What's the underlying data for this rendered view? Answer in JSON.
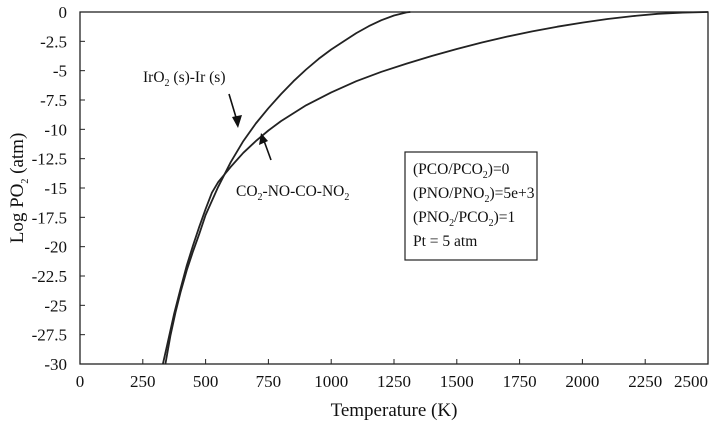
{
  "chart_data": {
    "type": "line",
    "title": "",
    "xlabel": "Temperature (K)",
    "ylabel": {
      "main": "Log PO",
      "sub": "2",
      "unit": " (atm)"
    },
    "xlim": [
      0,
      2500
    ],
    "ylim": [
      -30,
      0
    ],
    "x_ticks": [
      "0",
      "250",
      "500",
      "750",
      "1000",
      "1250",
      "1500",
      "1750",
      "2000",
      "2250",
      "2500"
    ],
    "y_ticks": [
      "0",
      "-2.5",
      "-5",
      "-7.5",
      "-10",
      "-12.5",
      "-15",
      "-17.5",
      "-20",
      "-22.5",
      "-25",
      "-27.5",
      "-30"
    ],
    "grid": false,
    "series": [
      {
        "name": "IrO2 (s)-Ir (s)",
        "color": "#222222",
        "x": [
          340,
          360,
          380,
          400,
          425,
          450,
          475,
          500,
          550,
          600,
          650,
          700,
          750,
          800,
          850,
          900,
          950,
          1000,
          1050,
          1100,
          1150,
          1200,
          1250,
          1300,
          1315
        ],
        "y": [
          -30,
          -27.6,
          -25.6,
          -23.9,
          -22.0,
          -20.4,
          -18.9,
          -17.3,
          -14.9,
          -12.8,
          -11.0,
          -9.5,
          -8.2,
          -7.0,
          -5.9,
          -4.9,
          -4.0,
          -3.2,
          -2.5,
          -1.8,
          -1.2,
          -0.7,
          -0.3,
          -0.03,
          0
        ]
      },
      {
        "name": "CO2-NO-CO-NO2",
        "color": "#222222",
        "x": [
          330,
          350,
          375,
          400,
          425,
          450,
          475,
          500,
          525,
          550,
          600,
          650,
          700,
          750,
          800,
          900,
          1000,
          1100,
          1200,
          1300,
          1400,
          1500,
          1600,
          1700,
          1800,
          1900,
          2000,
          2100,
          2200,
          2300,
          2400,
          2500
        ],
        "y": [
          -30,
          -28.1,
          -25.7,
          -23.6,
          -21.6,
          -19.9,
          -18.3,
          -16.8,
          -15.4,
          -14.5,
          -13.2,
          -12.0,
          -11.0,
          -10.1,
          -9.3,
          -7.95,
          -6.85,
          -5.9,
          -5.1,
          -4.4,
          -3.75,
          -3.15,
          -2.6,
          -2.1,
          -1.65,
          -1.25,
          -0.9,
          -0.6,
          -0.35,
          -0.15,
          -0.05,
          0
        ]
      }
    ],
    "annotations": {
      "iro2": {
        "a": "IrO",
        "b": "2",
        "c": " (s)-Ir (s)"
      },
      "co2": {
        "a": "CO",
        "b": "2",
        "c": "-NO-CO-NO",
        "d": "2"
      },
      "legend_box": [
        {
          "a": "(PCO/PCO",
          "b": "2",
          "c": ")=0"
        },
        {
          "a": "(PNO/PNO",
          "b": "2",
          "c": ")=5e+3"
        },
        {
          "a": "(PNO",
          "b": "2",
          "c": "/PCO",
          "d": "2",
          "e": ")=1"
        },
        {
          "a": "Pt = 5 atm"
        }
      ]
    }
  }
}
